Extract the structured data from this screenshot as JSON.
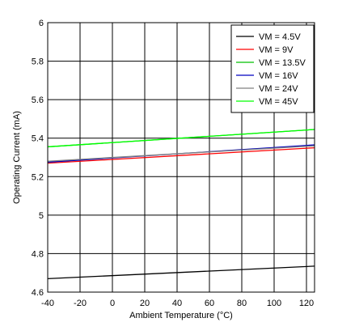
{
  "chart_data": {
    "type": "line",
    "xlabel": "Ambient Temperature (°C)",
    "ylabel": "Operating Current (mA)",
    "xlim": [
      -40,
      125
    ],
    "ylim": [
      4.6,
      6
    ],
    "xticks": [
      "-40",
      "-20",
      "0",
      "20",
      "40",
      "60",
      "80",
      "100",
      "120"
    ],
    "yticks": [
      "4.6",
      "4.8",
      "5",
      "5.2",
      "5.4",
      "5.6",
      "5.8",
      "6"
    ],
    "grid": true,
    "legend_position": "top-right",
    "series": [
      {
        "name": "VM = 4.5V",
        "color": "#000000",
        "x": [
          -40,
          125
        ],
        "y": [
          4.67,
          4.735
        ]
      },
      {
        "name": "VM = 9V",
        "color": "#ff0000",
        "x": [
          -40,
          125
        ],
        "y": [
          5.27,
          5.35
        ]
      },
      {
        "name": "VM = 13.5V",
        "color": "#00c000",
        "x": [
          -40,
          125
        ],
        "y": [
          5.355,
          5.445
        ]
      },
      {
        "name": "VM = 16V",
        "color": "#0000c0",
        "x": [
          -40,
          125
        ],
        "y": [
          5.275,
          5.365
        ]
      },
      {
        "name": "VM = 24V",
        "color": "#808080",
        "x": [
          -40,
          125
        ],
        "y": [
          5.28,
          5.36
        ]
      },
      {
        "name": "VM = 45V",
        "color": "#00ff00",
        "x": [
          -40,
          125
        ],
        "y": [
          5.355,
          5.445
        ]
      }
    ]
  }
}
